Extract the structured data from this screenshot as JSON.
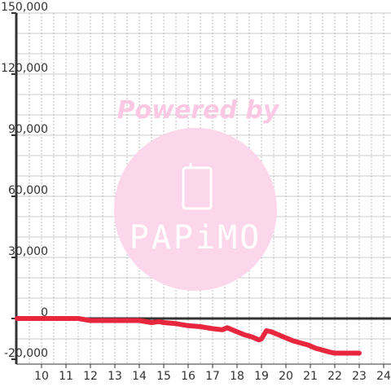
{
  "chart_data": {
    "type": "line",
    "title": "",
    "xlabel": "",
    "ylabel": "",
    "xlim": [
      9,
      24.4
    ],
    "ylim": [
      -20000,
      150000
    ],
    "x_ticks": [
      10,
      11,
      12,
      13,
      14,
      15,
      16,
      17,
      18,
      19,
      20,
      21,
      22,
      23,
      24
    ],
    "y_ticks": [
      150000,
      120000,
      90000,
      60000,
      30000,
      0,
      -20000
    ],
    "y_tick_labels": [
      "150,000",
      "120,000",
      "90,000",
      "60,000",
      "30,000",
      "0",
      "-20,000"
    ],
    "grid": true,
    "series": [
      {
        "color": "#e8273f",
        "points": [
          [
            9.0,
            0
          ],
          [
            10.0,
            0
          ],
          [
            11.0,
            0
          ],
          [
            11.5,
            0
          ],
          [
            12.0,
            -1000
          ],
          [
            12.5,
            -1000
          ],
          [
            13.0,
            -1000
          ],
          [
            13.5,
            -1000
          ],
          [
            14.0,
            -1000
          ],
          [
            14.5,
            -2000
          ],
          [
            14.8,
            -1500
          ],
          [
            15.0,
            -2000
          ],
          [
            15.5,
            -2500
          ],
          [
            16.0,
            -3500
          ],
          [
            16.5,
            -4000
          ],
          [
            17.0,
            -5000
          ],
          [
            17.4,
            -5500
          ],
          [
            17.6,
            -4500
          ],
          [
            17.8,
            -5500
          ],
          [
            18.0,
            -6500
          ],
          [
            18.3,
            -8000
          ],
          [
            18.6,
            -9000
          ],
          [
            18.9,
            -10500
          ],
          [
            19.0,
            -10000
          ],
          [
            19.2,
            -6000
          ],
          [
            19.4,
            -6500
          ],
          [
            19.7,
            -8000
          ],
          [
            20.0,
            -9500
          ],
          [
            20.3,
            -11000
          ],
          [
            20.6,
            -12000
          ],
          [
            20.9,
            -13000
          ],
          [
            21.2,
            -14500
          ],
          [
            21.5,
            -15500
          ],
          [
            21.8,
            -16500
          ],
          [
            22.0,
            -17000
          ],
          [
            22.5,
            -17000
          ],
          [
            23.0,
            -17000
          ]
        ]
      }
    ]
  },
  "watermark": {
    "powered_text": "Powered by",
    "logo_text": "PAPiMO"
  }
}
